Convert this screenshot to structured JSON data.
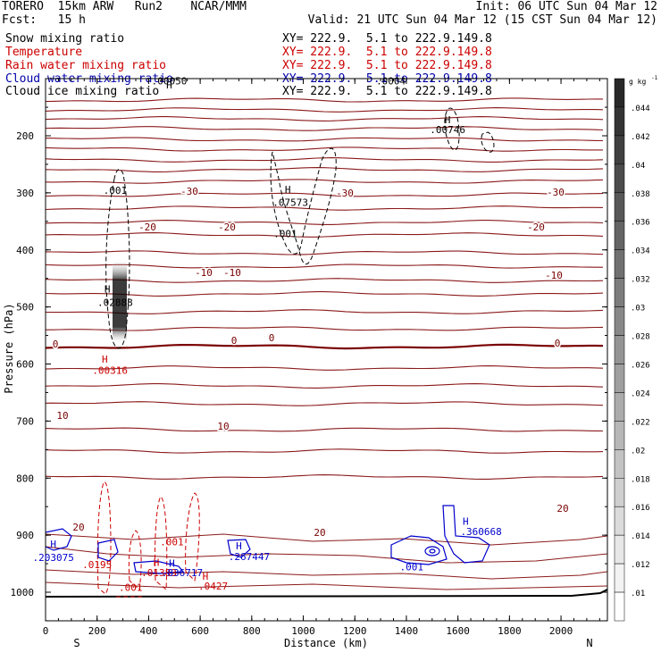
{
  "header": {
    "left_line1": "TORERO  15km ARW   Run2    NCAR/MMM",
    "left_line2": "Fcst:   15 h",
    "right_line1": "Init: 06 UTC Sun 04 Mar 12",
    "right_line2": "Valid: 21 UTC Sun 04 Mar 12 (15 CST Sun 04 Mar 12)"
  },
  "fields": [
    {
      "name": "Snow mixing ratio",
      "xy": "XY= 222.9.  5.1 to 222.9.149.8",
      "color": "#000000"
    },
    {
      "name": "Temperature",
      "xy": "XY= 222.9.  5.1 to 222.9.149.8",
      "color": "#cc0000"
    },
    {
      "name": "Rain water mixing ratio",
      "xy": "XY= 222.9.  5.1 to 222.9.149.8",
      "color": "#cc0000"
    },
    {
      "name": "Cloud water mixing ratio",
      "xy": "XY= 222.9.  5.1 to 222.9.149.8",
      "color": "#0000aa"
    },
    {
      "name": "Cloud ice mixing ratio",
      "xy": "XY= 222.9.  5.1 to 222.9.149.8",
      "color": "#000000"
    }
  ],
  "chart_data": {
    "type": "contour cross-section",
    "xlabel": "Distance (km)",
    "ylabel": "Pressure (hPa)",
    "xlim": [
      0,
      2180
    ],
    "ylim": [
      1050,
      100
    ],
    "x_ticks": [
      "0",
      "200",
      "400",
      "600",
      "800",
      "1000",
      "1200",
      "1400",
      "1600",
      "1800",
      "2000"
    ],
    "y_ticks": [
      "200",
      "300",
      "400",
      "500",
      "600",
      "700",
      "800",
      "900",
      "1000"
    ],
    "x_end_labels": {
      "left": "S",
      "right": "N"
    },
    "colorbar": {
      "unit": "g kg",
      "unit_exponent": "-1",
      "ticks": [
        ".044",
        ".042",
        ".04",
        ".038",
        ".036",
        ".034",
        ".032",
        ".03",
        ".028",
        ".026",
        ".024",
        ".022",
        ".02",
        ".018",
        ".016",
        ".014",
        ".012",
        ".01"
      ]
    },
    "temperature_contours": [
      {
        "value": "-30",
        "labels": [
          "-30",
          "-30",
          "-30"
        ]
      },
      {
        "value": "-20",
        "labels": [
          "-20",
          "-20",
          "-20"
        ]
      },
      {
        "value": "-10",
        "labels": [
          "-10",
          "-10",
          "-10"
        ]
      },
      {
        "value": "0",
        "labels": [
          "0",
          "0",
          "0",
          "0"
        ]
      },
      {
        "value": "10",
        "labels": [
          "10",
          "10"
        ]
      },
      {
        "value": "20",
        "labels": [
          "20",
          "20",
          "20"
        ]
      }
    ],
    "annotations": [
      {
        "text": "H",
        "x": 480,
        "p": 117,
        "color": "#000000"
      },
      {
        "text": ".00050",
        "x": 480,
        "p": 110,
        "color": "#000000"
      },
      {
        "text": ".0004",
        "x": 1340,
        "p": 110,
        "color": "#000000"
      },
      {
        "text": "H",
        "x": 1560,
        "p": 178,
        "color": "#000000"
      },
      {
        "text": ".00746",
        "x": 1560,
        "p": 195,
        "color": "#000000"
      },
      {
        "text": ".001",
        "x": 270,
        "p": 302,
        "color": "#000000"
      },
      {
        "text": "H",
        "x": 940,
        "p": 300,
        "color": "#000000"
      },
      {
        "text": ".07573",
        "x": 950,
        "p": 323,
        "color": "#000000"
      },
      {
        "text": ".001",
        "x": 930,
        "p": 378,
        "color": "#000000"
      },
      {
        "text": "H",
        "x": 240,
        "p": 475,
        "color": "#000000"
      },
      {
        "text": ".02888",
        "x": 270,
        "p": 498,
        "color": "#000000"
      },
      {
        "text": "H",
        "x": 230,
        "p": 598,
        "color": "#cc0000"
      },
      {
        "text": ".00316",
        "x": 250,
        "p": 617,
        "color": "#cc0000"
      },
      {
        "text": ".001",
        "x": 490,
        "p": 918,
        "color": "#cc0000"
      },
      {
        "text": "H",
        "x": 430,
        "p": 954,
        "color": "#cc0000"
      },
      {
        "text": ".01383",
        "x": 440,
        "p": 972,
        "color": "#cc0000"
      },
      {
        "text": "H",
        "x": 620,
        "p": 978,
        "color": "#cc0000"
      },
      {
        "text": ".0427",
        "x": 650,
        "p": 995,
        "color": "#cc0000"
      },
      {
        "text": ".0195",
        "x": 200,
        "p": 958,
        "color": "#cc0000"
      },
      {
        "text": ".001",
        "x": 330,
        "p": 998,
        "color": "#cc0000"
      },
      {
        "text": "H",
        "x": 30,
        "p": 922,
        "color": "#0000cc"
      },
      {
        "text": ".203075",
        "x": 30,
        "p": 945,
        "color": "#0000cc"
      },
      {
        "text": "H",
        "x": 490,
        "p": 955,
        "color": "#0000cc"
      },
      {
        "text": ".836717",
        "x": 530,
        "p": 972,
        "color": "#0000cc"
      },
      {
        "text": "H",
        "x": 750,
        "p": 925,
        "color": "#0000cc"
      },
      {
        "text": ".267447",
        "x": 790,
        "p": 944,
        "color": "#0000cc"
      },
      {
        "text": "H",
        "x": 1630,
        "p": 882,
        "color": "#0000cc"
      },
      {
        "text": ".360668",
        "x": 1690,
        "p": 900,
        "color": "#0000cc"
      },
      {
        "text": ".001",
        "x": 1420,
        "p": 962,
        "color": "#0000cc"
      }
    ]
  }
}
